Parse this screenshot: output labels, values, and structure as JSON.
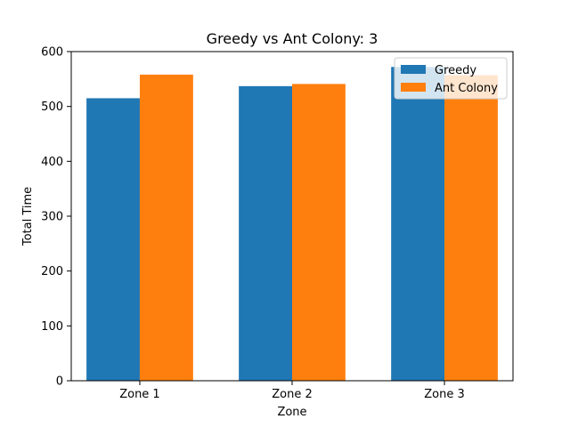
{
  "chart_data": {
    "type": "bar",
    "title": "Greedy vs Ant Colony: 3",
    "xlabel": "Zone",
    "ylabel": "Total Time",
    "categories": [
      "Zone 1",
      "Zone 2",
      "Zone 3"
    ],
    "series": [
      {
        "name": "Greedy",
        "values": [
          515,
          537,
          572
        ],
        "color": "#1f77b4"
      },
      {
        "name": "Ant Colony",
        "values": [
          558,
          541,
          557
        ],
        "color": "#ff7f0e"
      }
    ],
    "ylim": [
      0,
      600
    ],
    "yticks": [
      0,
      100,
      200,
      300,
      400,
      500,
      600
    ],
    "grid": false,
    "legend_position": "top-right"
  }
}
